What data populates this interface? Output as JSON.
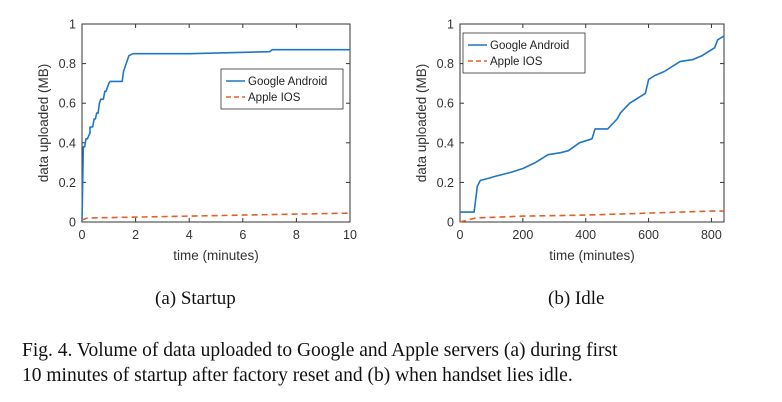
{
  "colors": {
    "android": "#1f77c4",
    "ios": "#e0602a",
    "axis": "#333333",
    "text": "#111111"
  },
  "caption": {
    "line1": "Fig. 4.  Volume of data uploaded to Google and Apple servers (a) during first",
    "line2": "10 minutes of startup after factory reset and (b) when handset lies idle."
  },
  "chart_data": [
    {
      "type": "line",
      "subcaption": "(a)  Startup",
      "xlabel": "time (minutes)",
      "ylabel": "data uploaded (MB)",
      "xlim": [
        0,
        10
      ],
      "ylim": [
        0,
        1
      ],
      "xticks": [
        0,
        2,
        4,
        6,
        8,
        10
      ],
      "yticks": [
        0,
        0.2,
        0.4,
        0.6,
        0.8,
        1
      ],
      "grid": false,
      "legend": "right",
      "series": [
        {
          "name": "Google Android",
          "style": "solid",
          "x": [
            0,
            0.05,
            0.1,
            0.15,
            0.2,
            0.3,
            0.3,
            0.4,
            0.45,
            0.5,
            0.55,
            0.6,
            0.65,
            0.7,
            0.8,
            0.85,
            0.9,
            1.0,
            1.05,
            1.5,
            1.55,
            1.75,
            1.9,
            4.0,
            7.0,
            7.1,
            10
          ],
          "y": [
            0,
            0.38,
            0.38,
            0.42,
            0.42,
            0.45,
            0.48,
            0.48,
            0.52,
            0.52,
            0.55,
            0.55,
            0.6,
            0.62,
            0.62,
            0.66,
            0.66,
            0.7,
            0.71,
            0.71,
            0.76,
            0.84,
            0.85,
            0.85,
            0.86,
            0.87,
            0.87
          ]
        },
        {
          "name": "Apple IOS",
          "style": "dashed",
          "x": [
            0,
            0.2,
            2,
            4,
            6,
            8,
            10
          ],
          "y": [
            0.01,
            0.02,
            0.025,
            0.03,
            0.035,
            0.04,
            0.045
          ]
        }
      ]
    },
    {
      "type": "line",
      "subcaption": "(b)  Idle",
      "xlabel": "time (minutes)",
      "ylabel": "data uploaded (MB)",
      "xlim": [
        0,
        840
      ],
      "ylim": [
        0,
        1
      ],
      "xticks": [
        0,
        200,
        400,
        600,
        800
      ],
      "yticks": [
        0,
        0.2,
        0.4,
        0.6,
        0.8,
        1
      ],
      "grid": false,
      "legend": "top-left",
      "series": [
        {
          "name": "Google Android",
          "style": "solid",
          "x": [
            0,
            45,
            55,
            65,
            90,
            110,
            160,
            200,
            240,
            280,
            320,
            345,
            380,
            420,
            430,
            470,
            500,
            510,
            540,
            570,
            590,
            600,
            620,
            650,
            680,
            700,
            740,
            770,
            790,
            810,
            820,
            840
          ],
          "y": [
            0.05,
            0.05,
            0.18,
            0.21,
            0.22,
            0.23,
            0.25,
            0.27,
            0.3,
            0.34,
            0.35,
            0.36,
            0.4,
            0.42,
            0.47,
            0.47,
            0.52,
            0.55,
            0.6,
            0.63,
            0.65,
            0.72,
            0.74,
            0.76,
            0.79,
            0.81,
            0.82,
            0.84,
            0.86,
            0.88,
            0.92,
            0.94
          ]
        },
        {
          "name": "Apple IOS",
          "style": "dashed",
          "x": [
            0,
            50,
            200,
            400,
            600,
            800,
            840
          ],
          "y": [
            0,
            0.02,
            0.03,
            0.035,
            0.045,
            0.055,
            0.055
          ]
        }
      ]
    }
  ]
}
